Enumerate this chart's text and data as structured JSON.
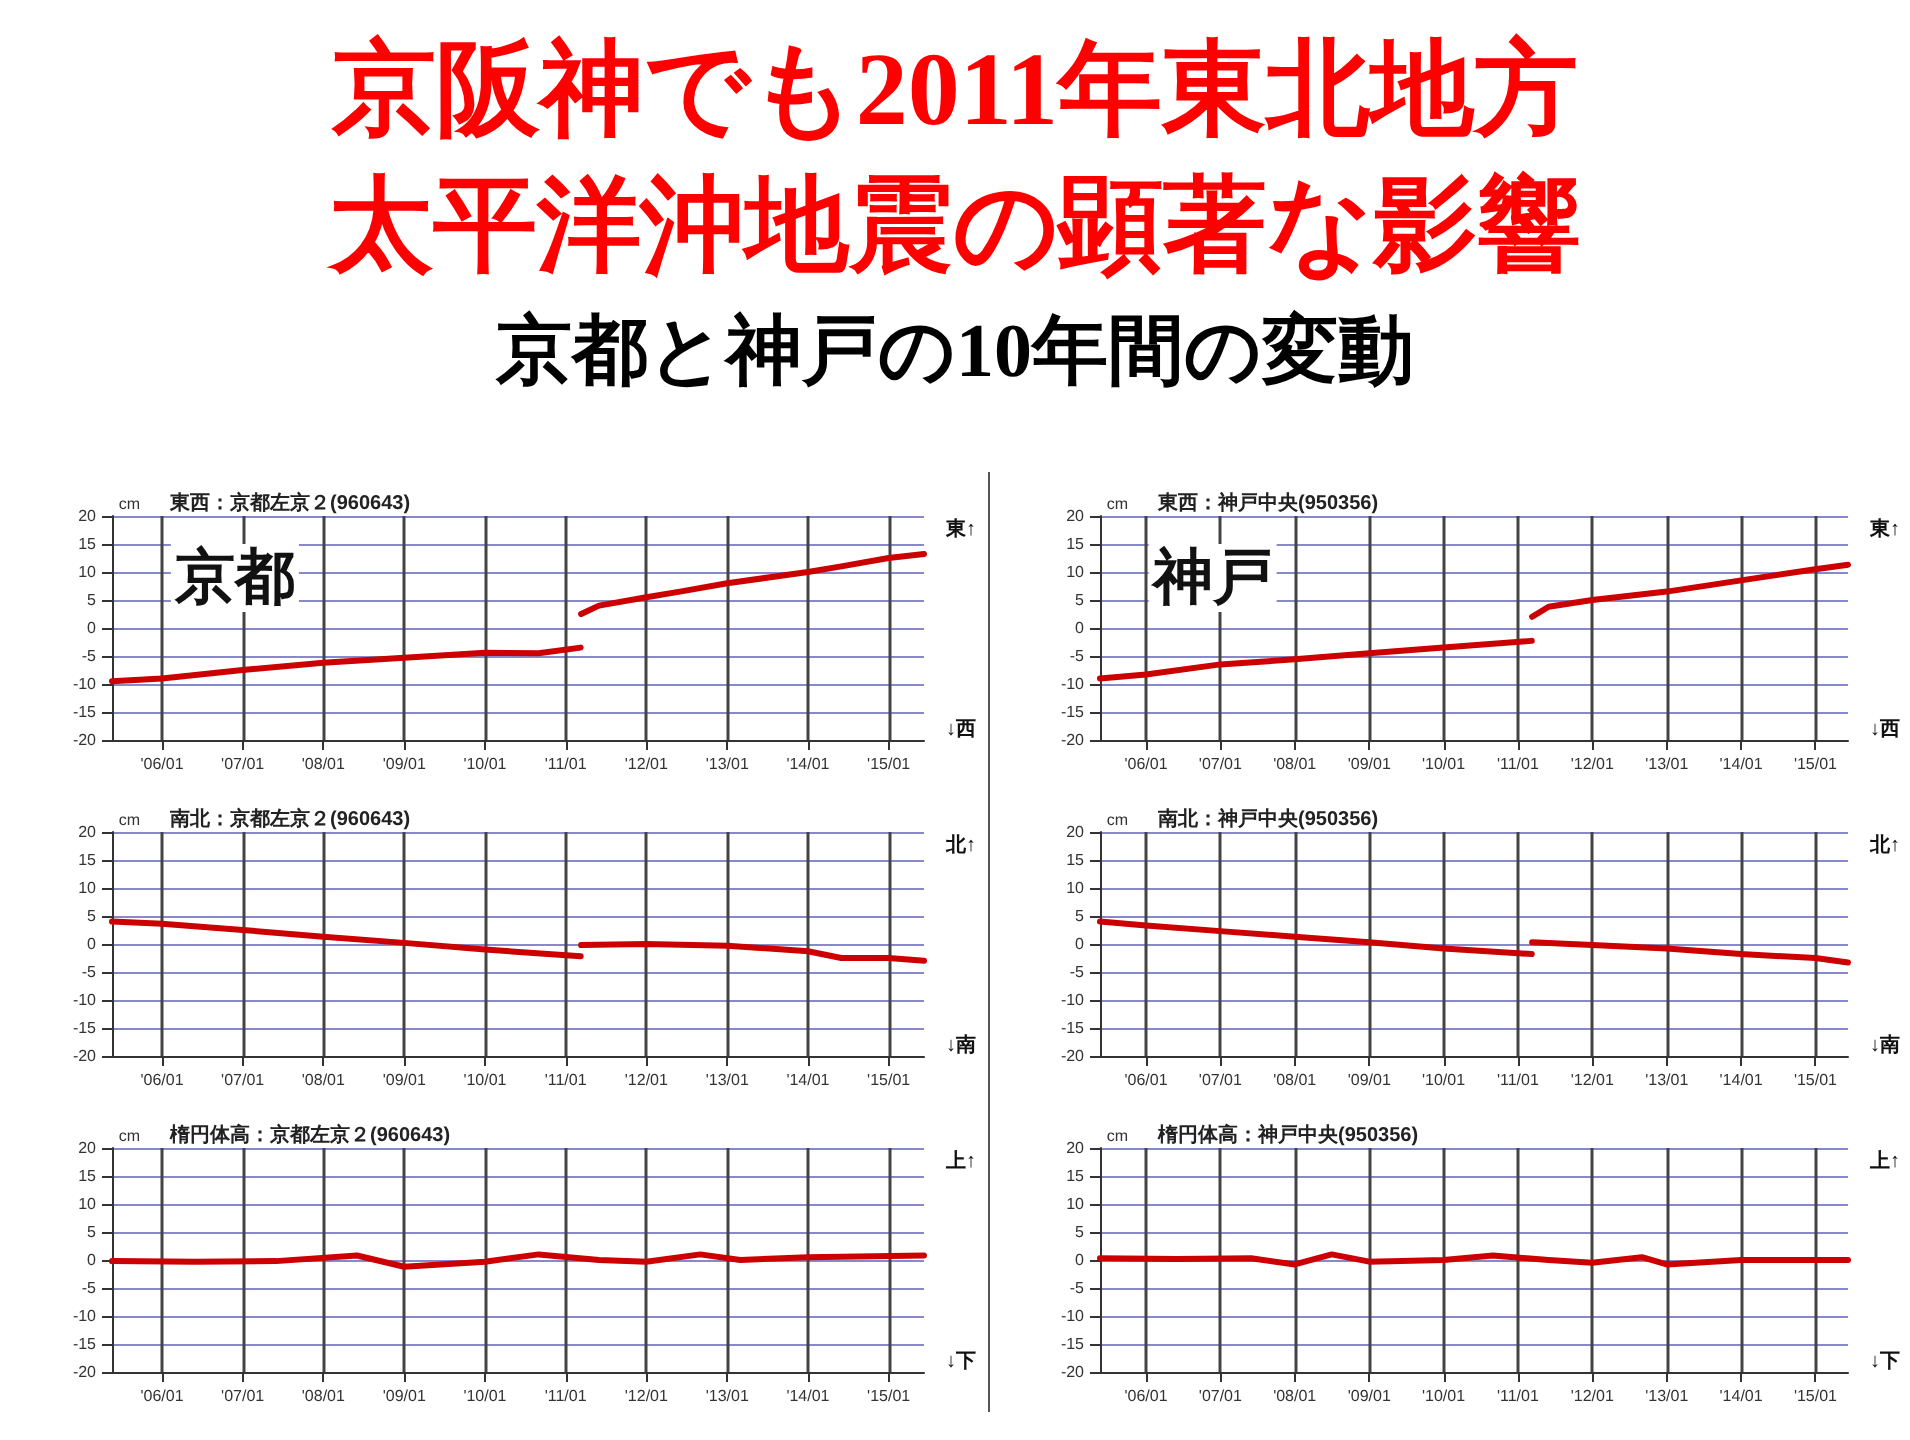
{
  "chart_data": [
    {
      "type": "other",
      "title": "京阪神でも2011年東北地方太平洋沖地震の顕著な影響",
      "subtitle": "京都と神戸の10年間の変動"
    },
    {
      "type": "line",
      "title": "東西：京都左京２(960643)",
      "ylabel": "cm",
      "annotations": [
        "東↑",
        "↓西",
        "京都"
      ],
      "xlim": [
        "2005-05-20",
        "2015-06-10"
      ],
      "xticks": [
        {
          "value": "2006-01-01",
          "label": "'06/01"
        },
        {
          "value": "2007-01-01",
          "label": "'07/01"
        },
        {
          "value": "2008-01-01",
          "label": "'08/01"
        },
        {
          "value": "2009-01-01",
          "label": "'09/01"
        },
        {
          "value": "2010-01-01",
          "label": "'10/01"
        },
        {
          "value": "2011-01-01",
          "label": "'11/01"
        },
        {
          "value": "2012-01-01",
          "label": "'12/01"
        },
        {
          "value": "2013-01-01",
          "label": "'13/01"
        },
        {
          "value": "2014-01-01",
          "label": "'14/01"
        },
        {
          "value": "2015-01-01",
          "label": "'15/01"
        }
      ],
      "ylim": [
        -20,
        20
      ],
      "yticks": [
        -20,
        -15,
        -10,
        -5,
        0,
        5,
        10,
        15,
        20
      ],
      "grid": true,
      "marker": "none",
      "line_style": "solid",
      "series": [
        {
          "color": "#cc0000",
          "x": [
            "2005-05-20",
            "2006-01-01",
            "2007-01-01",
            "2008-01-01",
            "2009-01-01",
            "2010-01-01",
            "2010-09-01",
            "2011-03-10",
            "2011-03-11",
            "2011-03-12",
            "2011-06-01",
            "2012-01-01",
            "2012-06-01",
            "2013-01-01",
            "2014-01-01",
            "2014-06-01",
            "2015-01-01",
            "2015-06-10"
          ],
          "values": [
            -9.5,
            -9,
            -7.5,
            -6.2,
            -5.3,
            -4.4,
            -4.5,
            -3.5,
            null,
            2.5,
            4,
            5.5,
            6.5,
            8,
            10,
            11,
            12.5,
            13.2
          ]
        }
      ]
    },
    {
      "type": "line",
      "title": "東西：神戸中央(950356)",
      "ylabel": "cm",
      "annotations": [
        "東↑",
        "↓西",
        "神戸"
      ],
      "xlim": [
        "2005-05-20",
        "2015-06-10"
      ],
      "xticks": [
        {
          "value": "2006-01-01",
          "label": "'06/01"
        },
        {
          "value": "2007-01-01",
          "label": "'07/01"
        },
        {
          "value": "2008-01-01",
          "label": "'08/01"
        },
        {
          "value": "2009-01-01",
          "label": "'09/01"
        },
        {
          "value": "2010-01-01",
          "label": "'10/01"
        },
        {
          "value": "2011-01-01",
          "label": "'11/01"
        },
        {
          "value": "2012-01-01",
          "label": "'12/01"
        },
        {
          "value": "2013-01-01",
          "label": "'13/01"
        },
        {
          "value": "2014-01-01",
          "label": "'14/01"
        },
        {
          "value": "2015-01-01",
          "label": "'15/01"
        }
      ],
      "ylim": [
        -20,
        20
      ],
      "yticks": [
        -20,
        -15,
        -10,
        -5,
        0,
        5,
        10,
        15,
        20
      ],
      "grid": true,
      "marker": "none",
      "line_style": "solid",
      "series": [
        {
          "color": "#cc0000",
          "x": [
            "2005-05-20",
            "2006-01-01",
            "2007-01-01",
            "2008-01-01",
            "2009-01-01",
            "2010-01-01",
            "2011-03-10",
            "2011-03-11",
            "2011-03-12",
            "2011-06-01",
            "2012-01-01",
            "2013-01-01",
            "2014-01-01",
            "2015-01-01",
            "2015-06-10"
          ],
          "values": [
            -9,
            -8.3,
            -6.5,
            -5.6,
            -4.5,
            -3.5,
            -2.3,
            null,
            2,
            3.8,
            5,
            6.5,
            8.5,
            10.5,
            11.3
          ]
        }
      ]
    },
    {
      "type": "line",
      "title": "南北：京都左京２(960643)",
      "ylabel": "cm",
      "annotations": [
        "北↑",
        "↓南"
      ],
      "xlim": [
        "2005-05-20",
        "2015-06-10"
      ],
      "xticks": [
        {
          "value": "2006-01-01",
          "label": "'06/01"
        },
        {
          "value": "2007-01-01",
          "label": "'07/01"
        },
        {
          "value": "2008-01-01",
          "label": "'08/01"
        },
        {
          "value": "2009-01-01",
          "label": "'09/01"
        },
        {
          "value": "2010-01-01",
          "label": "'10/01"
        },
        {
          "value": "2011-01-01",
          "label": "'11/01"
        },
        {
          "value": "2012-01-01",
          "label": "'12/01"
        },
        {
          "value": "2013-01-01",
          "label": "'13/01"
        },
        {
          "value": "2014-01-01",
          "label": "'14/01"
        },
        {
          "value": "2015-01-01",
          "label": "'15/01"
        }
      ],
      "ylim": [
        -20,
        20
      ],
      "yticks": [
        -20,
        -15,
        -10,
        -5,
        0,
        5,
        10,
        15,
        20
      ],
      "grid": true,
      "marker": "none",
      "line_style": "solid",
      "series": [
        {
          "color": "#cc0000",
          "x": [
            "2005-05-20",
            "2006-01-01",
            "2007-01-01",
            "2008-01-01",
            "2009-01-01",
            "2010-01-01",
            "2011-03-10",
            "2011-03-11",
            "2011-03-12",
            "2012-01-01",
            "2013-01-01",
            "2014-01-01",
            "2014-06-01",
            "2015-01-01",
            "2015-06-10"
          ],
          "values": [
            4,
            3.6,
            2.5,
            1.3,
            0.2,
            -1,
            -2.2,
            null,
            -0.2,
            0,
            -0.3,
            -1.3,
            -2.5,
            -2.5,
            -3
          ]
        }
      ]
    },
    {
      "type": "line",
      "title": "南北：神戸中央(950356)",
      "ylabel": "cm",
      "annotations": [
        "北↑",
        "↓南"
      ],
      "xlim": [
        "2005-05-20",
        "2015-06-10"
      ],
      "xticks": [
        {
          "value": "2006-01-01",
          "label": "'06/01"
        },
        {
          "value": "2007-01-01",
          "label": "'07/01"
        },
        {
          "value": "2008-01-01",
          "label": "'08/01"
        },
        {
          "value": "2009-01-01",
          "label": "'09/01"
        },
        {
          "value": "2010-01-01",
          "label": "'10/01"
        },
        {
          "value": "2011-01-01",
          "label": "'11/01"
        },
        {
          "value": "2012-01-01",
          "label": "'12/01"
        },
        {
          "value": "2013-01-01",
          "label": "'13/01"
        },
        {
          "value": "2014-01-01",
          "label": "'14/01"
        },
        {
          "value": "2015-01-01",
          "label": "'15/01"
        }
      ],
      "ylim": [
        -20,
        20
      ],
      "yticks": [
        -20,
        -15,
        -10,
        -5,
        0,
        5,
        10,
        15,
        20
      ],
      "grid": true,
      "marker": "none",
      "line_style": "solid",
      "series": [
        {
          "color": "#cc0000",
          "x": [
            "2005-05-20",
            "2006-01-01",
            "2007-01-01",
            "2008-01-01",
            "2009-01-01",
            "2010-01-01",
            "2011-03-10",
            "2011-03-11",
            "2011-03-12",
            "2012-01-01",
            "2013-01-01",
            "2014-01-01",
            "2015-01-01",
            "2015-06-10"
          ],
          "values": [
            4,
            3.3,
            2.3,
            1.3,
            0.3,
            -0.8,
            -1.8,
            null,
            0.3,
            -0.2,
            -0.8,
            -1.8,
            -2.5,
            -3.3
          ]
        }
      ]
    },
    {
      "type": "line",
      "title": "楕円体高：京都左京２(960643)",
      "ylabel": "cm",
      "annotations": [
        "上↑",
        "↓下"
      ],
      "xlim": [
        "2005-05-20",
        "2015-06-10"
      ],
      "xticks": [
        {
          "value": "2006-01-01",
          "label": "'06/01"
        },
        {
          "value": "2007-01-01",
          "label": "'07/01"
        },
        {
          "value": "2008-01-01",
          "label": "'08/01"
        },
        {
          "value": "2009-01-01",
          "label": "'09/01"
        },
        {
          "value": "2010-01-01",
          "label": "'10/01"
        },
        {
          "value": "2011-01-01",
          "label": "'11/01"
        },
        {
          "value": "2012-01-01",
          "label": "'12/01"
        },
        {
          "value": "2013-01-01",
          "label": "'13/01"
        },
        {
          "value": "2014-01-01",
          "label": "'14/01"
        },
        {
          "value": "2015-01-01",
          "label": "'15/01"
        }
      ],
      "ylim": [
        -20,
        20
      ],
      "yticks": [
        -20,
        -15,
        -10,
        -5,
        0,
        5,
        10,
        15,
        20
      ],
      "grid": true,
      "marker": "none",
      "line_style": "solid",
      "series": [
        {
          "color": "#cc0000",
          "x": [
            "2005-05-20",
            "2006-06-01",
            "2007-06-01",
            "2008-06-01",
            "2009-01-01",
            "2010-01-01",
            "2010-09-01",
            "2011-06-01",
            "2012-01-01",
            "2012-09-01",
            "2013-03-01",
            "2014-01-01",
            "2015-06-10"
          ],
          "values": [
            -0.2,
            -0.3,
            -0.2,
            0.8,
            -1.2,
            -0.3,
            1,
            0,
            -0.3,
            1,
            0,
            0.5,
            0.8
          ]
        }
      ]
    },
    {
      "type": "line",
      "title": "楕円体高：神戸中央(950356)",
      "ylabel": "cm",
      "annotations": [
        "上↑",
        "↓下"
      ],
      "xlim": [
        "2005-05-20",
        "2015-06-10"
      ],
      "xticks": [
        {
          "value": "2006-01-01",
          "label": "'06/01"
        },
        {
          "value": "2007-01-01",
          "label": "'07/01"
        },
        {
          "value": "2008-01-01",
          "label": "'08/01"
        },
        {
          "value": "2009-01-01",
          "label": "'09/01"
        },
        {
          "value": "2010-01-01",
          "label": "'10/01"
        },
        {
          "value": "2011-01-01",
          "label": "'11/01"
        },
        {
          "value": "2012-01-01",
          "label": "'12/01"
        },
        {
          "value": "2013-01-01",
          "label": "'13/01"
        },
        {
          "value": "2014-01-01",
          "label": "'14/01"
        },
        {
          "value": "2015-01-01",
          "label": "'15/01"
        }
      ],
      "ylim": [
        -20,
        20
      ],
      "yticks": [
        -20,
        -15,
        -10,
        -5,
        0,
        5,
        10,
        15,
        20
      ],
      "grid": true,
      "marker": "none",
      "line_style": "solid",
      "series": [
        {
          "color": "#cc0000",
          "x": [
            "2005-05-20",
            "2006-06-01",
            "2007-06-01",
            "2008-01-01",
            "2008-07-01",
            "2009-01-01",
            "2010-01-01",
            "2010-09-01",
            "2011-06-01",
            "2012-01-01",
            "2012-09-01",
            "2013-01-01",
            "2014-01-01",
            "2015-06-10"
          ],
          "values": [
            0.3,
            0.2,
            0.3,
            -0.8,
            1,
            -0.3,
            0,
            0.8,
            0,
            -0.5,
            0.5,
            -0.8,
            0,
            0
          ]
        }
      ]
    }
  ]
}
